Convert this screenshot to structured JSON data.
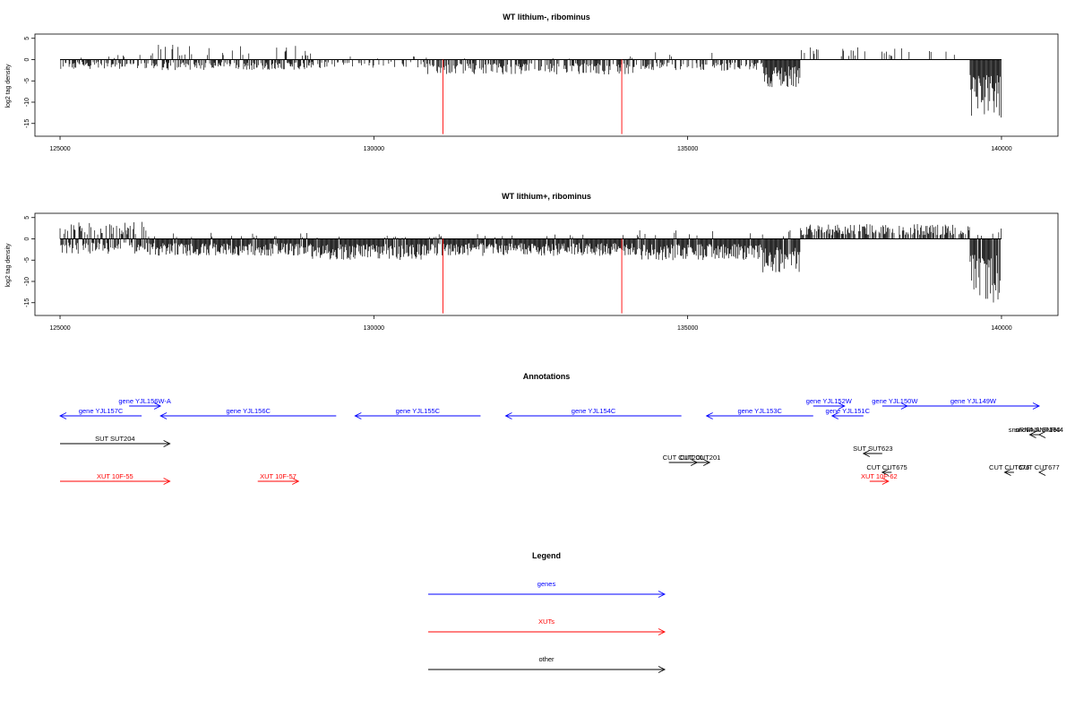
{
  "chart_data": [
    {
      "type": "bar",
      "title": "WT lithium-, ribominus",
      "ylabel": "log2 tag density",
      "xlim": [
        124600,
        140900
      ],
      "ylim": [
        -18,
        6
      ],
      "x_ticks": [
        125000,
        130000,
        135000,
        140000
      ],
      "y_ticks": [
        5,
        0,
        -5,
        -10,
        -15
      ],
      "marker_lines": [
        {
          "x": 131100,
          "y": -17.5,
          "color": "#ff0000"
        },
        {
          "x": 133950,
          "y": -17.5,
          "color": "#ff0000"
        }
      ],
      "regions": [
        {
          "start": 125000,
          "end": 126400,
          "pos_max": 1.2,
          "neg_max": 2.2,
          "density": 0.6,
          "pos_rate": 0.15
        },
        {
          "start": 126400,
          "end": 129000,
          "pos_max": 3.5,
          "neg_max": 2.5,
          "density": 0.75,
          "pos_rate": 0.2
        },
        {
          "start": 129000,
          "end": 130800,
          "pos_max": 0.8,
          "neg_max": 2.0,
          "density": 0.35,
          "pos_rate": 0.05
        },
        {
          "start": 130800,
          "end": 134200,
          "pos_max": 0.8,
          "neg_max": 3.5,
          "density": 0.65,
          "pos_rate": 0.03
        },
        {
          "start": 134200,
          "end": 136200,
          "pos_max": 1.8,
          "neg_max": 2.6,
          "density": 0.5,
          "pos_rate": 0.06
        },
        {
          "start": 136200,
          "end": 136800,
          "pos_max": 0.5,
          "neg_max": 6.5,
          "density": 1.0,
          "pos_rate": 0.0
        },
        {
          "start": 136800,
          "end": 139500,
          "pos_max": 3.0,
          "neg_max": 0.2,
          "density": 0.12,
          "pos_rate": 1.0
        },
        {
          "start": 139500,
          "end": 140000,
          "pos_max": 0.3,
          "neg_max": 14.0,
          "density": 1.0,
          "pos_rate": 0.0
        }
      ]
    },
    {
      "type": "bar",
      "title": "WT lithium+, ribominus",
      "ylabel": "log2 tag density",
      "xlim": [
        124600,
        140900
      ],
      "ylim": [
        -18,
        6
      ],
      "x_ticks": [
        125000,
        130000,
        135000,
        140000
      ],
      "y_ticks": [
        5,
        0,
        -5,
        -10,
        -15
      ],
      "marker_lines": [
        {
          "x": 131100,
          "y": -17.5,
          "color": "#ff0000"
        },
        {
          "x": 133950,
          "y": -17.5,
          "color": "#ff0000"
        }
      ],
      "regions": [
        {
          "start": 125000,
          "end": 126400,
          "pos_max": 4.0,
          "neg_max": 3.5,
          "density": 1.0,
          "pos_rate": 0.45
        },
        {
          "start": 126400,
          "end": 129000,
          "pos_max": 1.5,
          "neg_max": 4.0,
          "density": 1.0,
          "pos_rate": 0.1
        },
        {
          "start": 129000,
          "end": 130800,
          "pos_max": 0.8,
          "neg_max": 5.0,
          "density": 1.0,
          "pos_rate": 0.05
        },
        {
          "start": 130800,
          "end": 134200,
          "pos_max": 1.2,
          "neg_max": 4.0,
          "density": 1.0,
          "pos_rate": 0.05
        },
        {
          "start": 134200,
          "end": 136200,
          "pos_max": 2.0,
          "neg_max": 5.0,
          "density": 1.0,
          "pos_rate": 0.06
        },
        {
          "start": 136200,
          "end": 136800,
          "pos_max": 2.0,
          "neg_max": 8.0,
          "density": 1.0,
          "pos_rate": 0.05
        },
        {
          "start": 136800,
          "end": 139500,
          "pos_max": 3.5,
          "neg_max": 0.3,
          "density": 0.7,
          "pos_rate": 1.0
        },
        {
          "start": 139500,
          "end": 140000,
          "pos_max": 2.5,
          "neg_max": 15.0,
          "density": 1.0,
          "pos_rate": 0.1
        }
      ]
    }
  ],
  "annotations": {
    "title": "Annotations",
    "items": [
      {
        "label": "gene YJL157C",
        "start": 125000,
        "end": 126300,
        "row": 0,
        "dir": "left",
        "color": "#0000ff"
      },
      {
        "label": "gene YJL156W-A",
        "start": 126100,
        "end": 126600,
        "row": -1,
        "dir": "right",
        "color": "#0000ff"
      },
      {
        "label": "gene YJL156C",
        "start": 126600,
        "end": 129400,
        "row": 0,
        "dir": "left",
        "color": "#0000ff"
      },
      {
        "label": "gene YJL155C",
        "start": 129700,
        "end": 131700,
        "row": 0,
        "dir": "left",
        "color": "#0000ff"
      },
      {
        "label": "gene YJL154C",
        "start": 132100,
        "end": 134900,
        "row": 0,
        "dir": "left",
        "color": "#0000ff"
      },
      {
        "label": "gene YJL153C",
        "start": 135300,
        "end": 137000,
        "row": 0,
        "dir": "left",
        "color": "#0000ff"
      },
      {
        "label": "gene YJL152W",
        "start": 137000,
        "end": 137500,
        "row": -1,
        "dir": "right",
        "color": "#0000ff"
      },
      {
        "label": "gene YJL151C",
        "start": 137300,
        "end": 137800,
        "row": 0,
        "dir": "left",
        "color": "#0000ff"
      },
      {
        "label": "gene YJL150W",
        "start": 138100,
        "end": 138500,
        "row": -1,
        "dir": "right",
        "color": "#0000ff"
      },
      {
        "label": "gene YJL149W",
        "start": 138500,
        "end": 141300,
        "row": -1,
        "dir": "right",
        "color": "#0000ff"
      },
      {
        "label": "snoRNA SNR190",
        "start": 140450,
        "end": 140600,
        "row": 1,
        "dir": "left",
        "color": "#000000"
      },
      {
        "label": "snoRNA SNR44",
        "start": 140800,
        "end": 140950,
        "row": 1,
        "dir": "left",
        "color": "#000000"
      },
      {
        "label": "SUT SUT204",
        "start": 125000,
        "end": 126750,
        "row": 2,
        "dir": "right",
        "color": "#000000"
      },
      {
        "label": "SUT SUT623",
        "start": 137800,
        "end": 138100,
        "row": 3,
        "dir": "left",
        "color": "#000000"
      },
      {
        "label": "CUT CUT200",
        "start": 134700,
        "end": 135150,
        "row": 4,
        "dir": "right",
        "color": "#000000"
      },
      {
        "label": "CUT CUT201",
        "start": 135050,
        "end": 135350,
        "row": 4,
        "dir": "right",
        "color": "#000000"
      },
      {
        "label": "CUT CUT675",
        "start": 138100,
        "end": 138250,
        "row": 5,
        "dir": "left",
        "color": "#000000"
      },
      {
        "label": "CUT CUT676",
        "start": 140050,
        "end": 140200,
        "row": 5,
        "dir": "left",
        "color": "#000000"
      },
      {
        "label": "CUT CUT677",
        "start": 140900,
        "end": 141050,
        "row": 5,
        "dir": "left",
        "color": "#000000"
      },
      {
        "label": "XUT 10F-55",
        "start": 125000,
        "end": 126750,
        "row": 6,
        "dir": "right",
        "color": "#ff0000"
      },
      {
        "label": "XUT 10F-57",
        "start": 128150,
        "end": 128800,
        "row": 6,
        "dir": "right",
        "color": "#ff0000"
      },
      {
        "label": "XUT 10F-62",
        "start": 137900,
        "end": 138200,
        "row": 7,
        "dir": "right",
        "color": "#ff0000"
      }
    ]
  },
  "legend": {
    "title": "Legend",
    "items": [
      {
        "label": "genes",
        "color": "#0000ff"
      },
      {
        "label": "XUTs",
        "color": "#ff0000"
      },
      {
        "label": "other",
        "color": "#000000"
      }
    ]
  }
}
